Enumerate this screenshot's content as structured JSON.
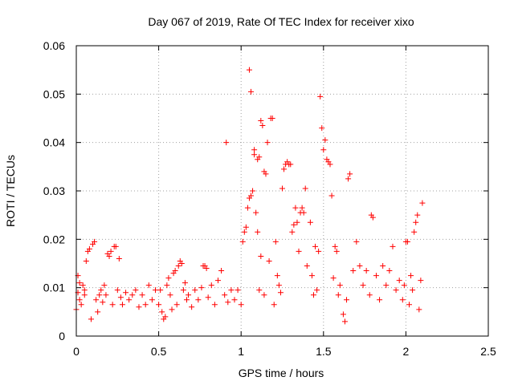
{
  "chart_data": {
    "type": "scatter",
    "title": "Day 067 of 2019, Rate Of TEC Index for receiver xixo",
    "xlabel": "GPS time / hours",
    "ylabel": "ROTI / TECUs",
    "xlim": [
      0,
      2.5
    ],
    "ylim": [
      0,
      0.06
    ],
    "x_ticks": [
      0,
      0.5,
      1,
      1.5,
      2,
      2.5
    ],
    "x_tick_labels": [
      "0",
      "0.5",
      "1",
      "1.5",
      "2",
      "2.5"
    ],
    "y_ticks": [
      0,
      0.01,
      0.02,
      0.03,
      0.04,
      0.05,
      0.06
    ],
    "y_tick_labels": [
      "0",
      "0.01",
      "0.02",
      "0.03",
      "0.04",
      "0.05",
      "0.06"
    ],
    "grid": true,
    "marker": "+",
    "color": "#ff0000",
    "series": [
      {
        "name": "ROTI",
        "points": [
          [
            0.0,
            0.0055
          ],
          [
            0.01,
            0.009
          ],
          [
            0.01,
            0.0125
          ],
          [
            0.02,
            0.011
          ],
          [
            0.02,
            0.0075
          ],
          [
            0.03,
            0.0065
          ],
          [
            0.04,
            0.0105
          ],
          [
            0.05,
            0.0095
          ],
          [
            0.05,
            0.0085
          ],
          [
            0.06,
            0.0155
          ],
          [
            0.07,
            0.0175
          ],
          [
            0.08,
            0.018
          ],
          [
            0.09,
            0.0035
          ],
          [
            0.1,
            0.019
          ],
          [
            0.11,
            0.0195
          ],
          [
            0.12,
            0.0075
          ],
          [
            0.13,
            0.005
          ],
          [
            0.14,
            0.0085
          ],
          [
            0.15,
            0.0095
          ],
          [
            0.16,
            0.007
          ],
          [
            0.17,
            0.0105
          ],
          [
            0.18,
            0.0085
          ],
          [
            0.19,
            0.017
          ],
          [
            0.2,
            0.0165
          ],
          [
            0.21,
            0.0175
          ],
          [
            0.22,
            0.0065
          ],
          [
            0.23,
            0.0185
          ],
          [
            0.24,
            0.0185
          ],
          [
            0.25,
            0.0095
          ],
          [
            0.26,
            0.016
          ],
          [
            0.27,
            0.008
          ],
          [
            0.28,
            0.0065
          ],
          [
            0.3,
            0.009
          ],
          [
            0.32,
            0.0075
          ],
          [
            0.34,
            0.0085
          ],
          [
            0.36,
            0.0095
          ],
          [
            0.38,
            0.006
          ],
          [
            0.4,
            0.0085
          ],
          [
            0.42,
            0.0065
          ],
          [
            0.44,
            0.0105
          ],
          [
            0.46,
            0.0075
          ],
          [
            0.48,
            0.0095
          ],
          [
            0.5,
            0.0065
          ],
          [
            0.51,
            0.0095
          ],
          [
            0.52,
            0.005
          ],
          [
            0.53,
            0.0035
          ],
          [
            0.54,
            0.004
          ],
          [
            0.55,
            0.0105
          ],
          [
            0.56,
            0.012
          ],
          [
            0.57,
            0.0085
          ],
          [
            0.58,
            0.0055
          ],
          [
            0.59,
            0.013
          ],
          [
            0.6,
            0.0135
          ],
          [
            0.61,
            0.0065
          ],
          [
            0.62,
            0.0145
          ],
          [
            0.63,
            0.0155
          ],
          [
            0.64,
            0.015
          ],
          [
            0.65,
            0.0095
          ],
          [
            0.66,
            0.011
          ],
          [
            0.67,
            0.0075
          ],
          [
            0.68,
            0.0085
          ],
          [
            0.7,
            0.006
          ],
          [
            0.72,
            0.0095
          ],
          [
            0.74,
            0.0075
          ],
          [
            0.76,
            0.01
          ],
          [
            0.77,
            0.0145
          ],
          [
            0.78,
            0.0145
          ],
          [
            0.79,
            0.014
          ],
          [
            0.8,
            0.008
          ],
          [
            0.82,
            0.0105
          ],
          [
            0.84,
            0.0065
          ],
          [
            0.86,
            0.0115
          ],
          [
            0.88,
            0.0135
          ],
          [
            0.9,
            0.0085
          ],
          [
            0.91,
            0.04
          ],
          [
            0.92,
            0.007
          ],
          [
            0.94,
            0.0095
          ],
          [
            0.96,
            0.0075
          ],
          [
            0.98,
            0.0095
          ],
          [
            1.0,
            0.0065
          ],
          [
            1.01,
            0.0195
          ],
          [
            1.02,
            0.0215
          ],
          [
            1.03,
            0.0225
          ],
          [
            1.04,
            0.0265
          ],
          [
            1.05,
            0.055
          ],
          [
            1.05,
            0.0285
          ],
          [
            1.06,
            0.029
          ],
          [
            1.06,
            0.0505
          ],
          [
            1.07,
            0.03
          ],
          [
            1.08,
            0.0385
          ],
          [
            1.08,
            0.0375
          ],
          [
            1.09,
            0.0255
          ],
          [
            1.1,
            0.0365
          ],
          [
            1.1,
            0.0215
          ],
          [
            1.11,
            0.037
          ],
          [
            1.11,
            0.0095
          ],
          [
            1.12,
            0.0445
          ],
          [
            1.12,
            0.0165
          ],
          [
            1.13,
            0.0435
          ],
          [
            1.14,
            0.034
          ],
          [
            1.14,
            0.0085
          ],
          [
            1.15,
            0.0335
          ],
          [
            1.16,
            0.04
          ],
          [
            1.17,
            0.0155
          ],
          [
            1.18,
            0.045
          ],
          [
            1.19,
            0.045
          ],
          [
            1.2,
            0.0065
          ],
          [
            1.21,
            0.0195
          ],
          [
            1.22,
            0.0125
          ],
          [
            1.23,
            0.0105
          ],
          [
            1.24,
            0.009
          ],
          [
            1.25,
            0.0305
          ],
          [
            1.26,
            0.0345
          ],
          [
            1.27,
            0.0355
          ],
          [
            1.28,
            0.036
          ],
          [
            1.29,
            0.0355
          ],
          [
            1.3,
            0.0355
          ],
          [
            1.31,
            0.0215
          ],
          [
            1.32,
            0.023
          ],
          [
            1.33,
            0.0265
          ],
          [
            1.34,
            0.0235
          ],
          [
            1.35,
            0.0175
          ],
          [
            1.36,
            0.0255
          ],
          [
            1.37,
            0.0265
          ],
          [
            1.38,
            0.0255
          ],
          [
            1.39,
            0.0305
          ],
          [
            1.4,
            0.0145
          ],
          [
            1.42,
            0.0235
          ],
          [
            1.43,
            0.0125
          ],
          [
            1.44,
            0.0085
          ],
          [
            1.45,
            0.0185
          ],
          [
            1.46,
            0.0095
          ],
          [
            1.47,
            0.0175
          ],
          [
            1.48,
            0.0495
          ],
          [
            1.49,
            0.043
          ],
          [
            1.5,
            0.0385
          ],
          [
            1.51,
            0.0405
          ],
          [
            1.52,
            0.0365
          ],
          [
            1.53,
            0.036
          ],
          [
            1.54,
            0.0355
          ],
          [
            1.55,
            0.029
          ],
          [
            1.56,
            0.012
          ],
          [
            1.57,
            0.0185
          ],
          [
            1.58,
            0.0175
          ],
          [
            1.59,
            0.0085
          ],
          [
            1.6,
            0.0105
          ],
          [
            1.62,
            0.0045
          ],
          [
            1.63,
            0.003
          ],
          [
            1.64,
            0.0075
          ],
          [
            1.65,
            0.0325
          ],
          [
            1.66,
            0.0335
          ],
          [
            1.68,
            0.0135
          ],
          [
            1.7,
            0.0195
          ],
          [
            1.72,
            0.0145
          ],
          [
            1.74,
            0.0105
          ],
          [
            1.76,
            0.0135
          ],
          [
            1.78,
            0.0085
          ],
          [
            1.79,
            0.025
          ],
          [
            1.8,
            0.0245
          ],
          [
            1.82,
            0.0125
          ],
          [
            1.84,
            0.0075
          ],
          [
            1.86,
            0.0145
          ],
          [
            1.88,
            0.0105
          ],
          [
            1.9,
            0.0135
          ],
          [
            1.92,
            0.0185
          ],
          [
            1.94,
            0.0095
          ],
          [
            1.96,
            0.0115
          ],
          [
            1.98,
            0.0075
          ],
          [
            1.99,
            0.0105
          ],
          [
            2.0,
            0.0195
          ],
          [
            2.01,
            0.0195
          ],
          [
            2.02,
            0.0065
          ],
          [
            2.03,
            0.0125
          ],
          [
            2.04,
            0.0095
          ],
          [
            2.05,
            0.0215
          ],
          [
            2.06,
            0.0235
          ],
          [
            2.07,
            0.025
          ],
          [
            2.08,
            0.0055
          ],
          [
            2.09,
            0.0115
          ],
          [
            2.1,
            0.0275
          ]
        ]
      }
    ]
  }
}
